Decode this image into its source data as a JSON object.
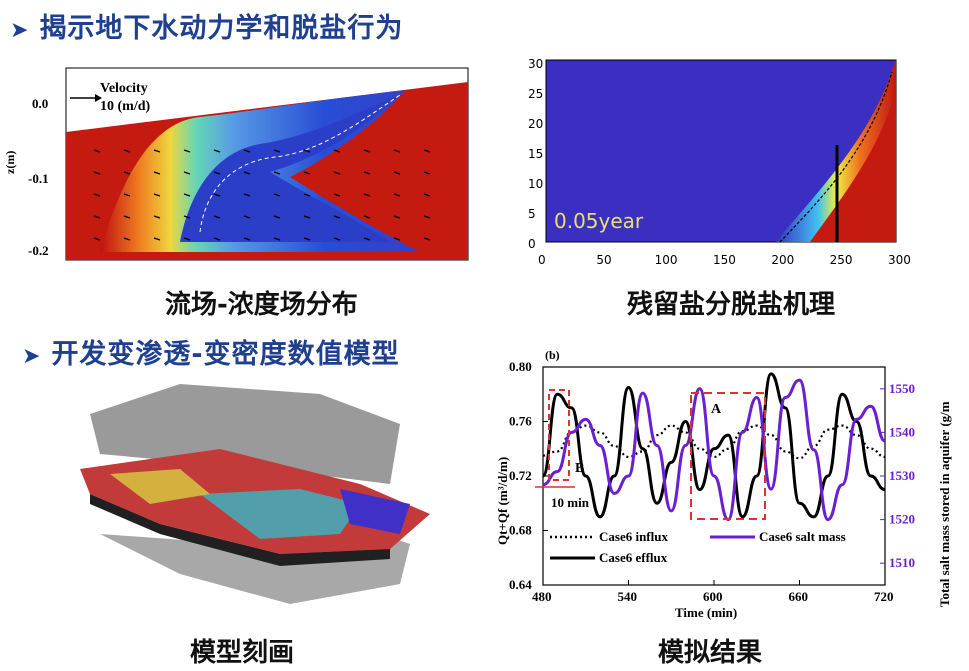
{
  "headings": {
    "h1": "揭示地下水动力学和脱盐行为",
    "h2": "开发变渗透-变密度数值模型"
  },
  "captions": {
    "p1": "流场-浓度场分布",
    "p2": "残留盐分脱盐机理",
    "p3": "模型刻画",
    "p4": "模拟结果"
  },
  "panel1": {
    "ylabel": "z(m)",
    "yticks": [
      "0.0",
      "-0.1",
      "-0.2"
    ],
    "velocity_label": "Velocity",
    "velocity_value": "10 (m/d)"
  },
  "panel2": {
    "annotation": "0.05year",
    "yticks": [
      "30",
      "25",
      "20",
      "15",
      "10",
      "5",
      "0"
    ],
    "xticks": [
      "0",
      "50",
      "100",
      "150",
      "200",
      "250",
      "300"
    ]
  },
  "panel4": {
    "panel_label": "(b)",
    "ylabel_left": "Qt+Qf (m³/d/m)",
    "ylabel_right": "Total salt mass stored in aquifer (g/m",
    "xlabel": "Time (min)",
    "annotation_a": "A",
    "annotation_b": "B",
    "annotation_10min": "10 min",
    "legend": {
      "influx": "Case6 influx",
      "efflux": "Case6 efflux",
      "salt": "Case6 salt mass"
    }
  },
  "chart_data": {
    "type": "line",
    "title": "",
    "xlabel": "Time (min)",
    "ylabel": "Qt+Qf (m³/d/m)",
    "ylabel_right": "Total salt mass stored in aquifer (g/m",
    "xlim": [
      480,
      720
    ],
    "ylim": [
      0.64,
      0.8
    ],
    "ylim_right": [
      1505,
      1555
    ],
    "xticks": [
      "480",
      "540",
      "600",
      "660",
      "720"
    ],
    "yticks": [
      "0.64",
      "0.68",
      "0.72",
      "0.76",
      "0.80"
    ],
    "yticks_right": [
      "1510",
      "1520",
      "1530",
      "1540",
      "1550"
    ],
    "legend_position": "bottom",
    "colors": {
      "influx": "#000000",
      "efflux": "#000000",
      "salt": "#6a1fd0",
      "box": "#e03030"
    },
    "series": [
      {
        "name": "Case6 influx",
        "axis": "left",
        "style": "dotted",
        "x": [
          480,
          490,
          500,
          510,
          520,
          530,
          540,
          550,
          560,
          570,
          580,
          590,
          600,
          610,
          620,
          630,
          640,
          650,
          660,
          670,
          680,
          690,
          700,
          710,
          720
        ],
        "values": [
          0.735,
          0.738,
          0.752,
          0.757,
          0.752,
          0.742,
          0.734,
          0.738,
          0.75,
          0.757,
          0.752,
          0.74,
          0.734,
          0.74,
          0.753,
          0.757,
          0.75,
          0.738,
          0.733,
          0.742,
          0.754,
          0.757,
          0.75,
          0.74,
          0.734
        ]
      },
      {
        "name": "Case6 efflux",
        "axis": "left",
        "style": "solid",
        "x": [
          480,
          490,
          500,
          510,
          520,
          530,
          540,
          550,
          560,
          570,
          580,
          590,
          600,
          610,
          620,
          630,
          640,
          650,
          660,
          670,
          680,
          690,
          700,
          710,
          720
        ],
        "values": [
          0.72,
          0.78,
          0.77,
          0.72,
          0.69,
          0.72,
          0.785,
          0.74,
          0.7,
          0.73,
          0.76,
          0.71,
          0.74,
          0.75,
          0.69,
          0.72,
          0.795,
          0.77,
          0.7,
          0.69,
          0.72,
          0.78,
          0.76,
          0.72,
          0.71
        ]
      },
      {
        "name": "Case6 salt mass",
        "axis": "right",
        "style": "solid",
        "x": [
          480,
          490,
          500,
          510,
          520,
          530,
          540,
          550,
          560,
          570,
          580,
          590,
          600,
          610,
          620,
          630,
          640,
          650,
          660,
          670,
          680,
          690,
          700,
          710,
          720
        ],
        "values": [
          1528,
          1531,
          1540,
          1543,
          1537,
          1526,
          1530,
          1549,
          1537,
          1522,
          1537,
          1550,
          1530,
          1520,
          1540,
          1548,
          1527,
          1548,
          1552,
          1536,
          1520,
          1528,
          1543,
          1546,
          1538
        ]
      }
    ]
  }
}
